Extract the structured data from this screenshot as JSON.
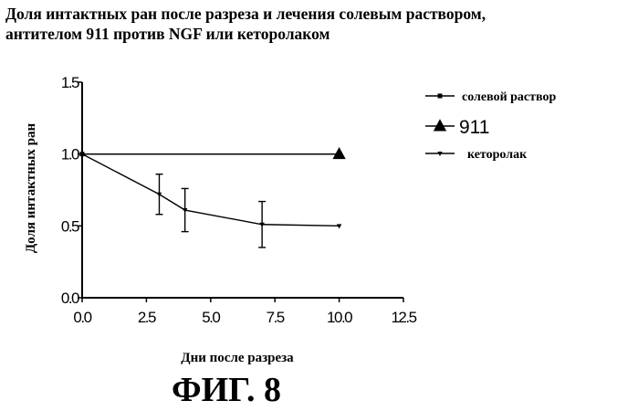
{
  "title_lines": [
    "Доля интактных ран после разреза и лечения солевым раствором,",
    "антителом 911 против NGF или кеторолаком"
  ],
  "figure_label": "ФИГ. 8",
  "chart_data": {
    "type": "line",
    "title": "Доля интактных ран после разреза и лечения солевым раствором, антителом 911 против NGF или кеторолаком",
    "xlabel": "Дни после разреза",
    "ylabel": "Доля интактных ран",
    "xlim": [
      0,
      12.5
    ],
    "ylim": [
      0,
      1.5
    ],
    "xticks": [
      "0.0",
      "2.5",
      "5.0",
      "7.5",
      "10.0",
      "12.5"
    ],
    "yticks": [
      "0.0",
      "0.5",
      "1.0",
      "1.5"
    ],
    "legend_position": "right",
    "series": [
      {
        "name": "солевой раствор",
        "marker": "square",
        "x": [
          0,
          10
        ],
        "y": [
          1.0,
          1.0
        ],
        "err": [
          0,
          0
        ]
      },
      {
        "name": "911",
        "marker": "triangle-up",
        "x": [
          0,
          10
        ],
        "y": [
          1.0,
          1.0
        ],
        "err": [
          0,
          0
        ]
      },
      {
        "name": "кеторолак",
        "marker": "triangle-down",
        "x": [
          0,
          3,
          4,
          7,
          10
        ],
        "y": [
          1.0,
          0.72,
          0.61,
          0.51,
          0.5
        ],
        "err": [
          0,
          0.14,
          0.15,
          0.16,
          0
        ]
      }
    ]
  }
}
